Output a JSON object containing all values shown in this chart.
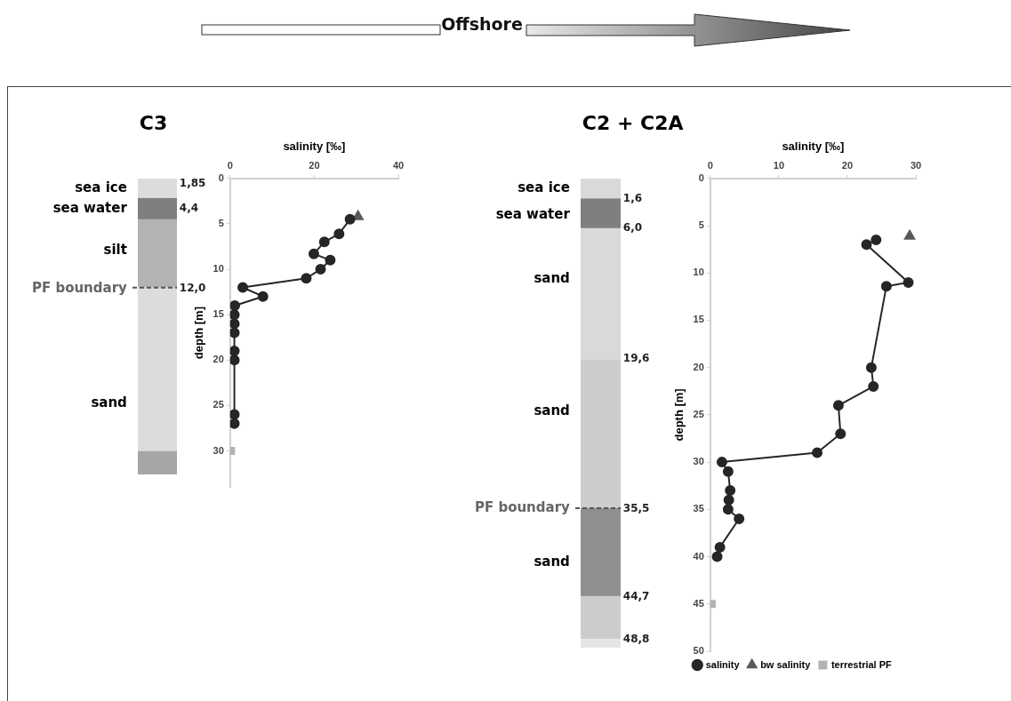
{
  "chart_data": [
    {
      "type": "line",
      "title": "C3",
      "xlabel": "salinity [‰]",
      "ylabel": "depth [m]",
      "xlim": [
        0,
        40
      ],
      "xticks": [
        0,
        20,
        40
      ],
      "ylim": [
        34,
        0
      ],
      "yticks": [
        0,
        5,
        10,
        15,
        20,
        25,
        30
      ],
      "series": [
        {
          "type": "line",
          "color": "#262626",
          "marker": "circle",
          "x": [
            28.5,
            25.9,
            22.4,
            19.9,
            23.8,
            21.5,
            18.1,
            3.0,
            7.8,
            1.1,
            1,
            1,
            1,
            1,
            1,
            1,
            1
          ],
          "values": [
            4.5,
            6.1,
            7.0,
            8.3,
            9.0,
            10.0,
            11.0,
            12.0,
            13.0,
            14.0,
            15,
            16,
            17,
            19,
            20,
            26,
            27
          ]
        },
        {
          "type": "scatter",
          "color": "#595959",
          "marker": "triangle",
          "x": [
            30.4
          ],
          "values": [
            4.2
          ]
        },
        {
          "type": "scatter",
          "color": "#b3b3b3",
          "marker": "square",
          "x": [
            0.2
          ],
          "values": [
            30
          ]
        }
      ],
      "annotations": [
        "Offshore",
        "sea ice",
        "sea water",
        "silt",
        "PF boundary",
        "sand",
        "1,85",
        "4,4",
        "12,0"
      ]
    },
    {
      "type": "line",
      "title": "C2 + C2A",
      "xlabel": "salinity [‰]",
      "ylabel": "depth [m]",
      "xlim": [
        0,
        30
      ],
      "xticks": [
        0,
        10,
        20,
        30
      ],
      "ylim": [
        50,
        0
      ],
      "yticks": [
        0,
        5,
        10,
        15,
        20,
        25,
        30,
        35,
        40,
        45,
        50
      ],
      "legend": "bottom",
      "series": [
        {
          "type": "line",
          "name": "salinity",
          "color": "#262626",
          "marker": "circle",
          "x": [
            24.2,
            22.8,
            28.9,
            25.7,
            23.5,
            23.8,
            18.7,
            19.0,
            15.6,
            1.7,
            2.6,
            2.9,
            2.7,
            2.6,
            4.2,
            1.4,
            1.0
          ],
          "values": [
            6.5,
            7.0,
            11.0,
            11.4,
            20,
            22,
            24,
            27,
            29,
            30,
            31,
            33,
            34,
            35,
            36,
            39,
            40
          ]
        },
        {
          "type": "scatter",
          "name": "bw salinity",
          "color": "#595959",
          "marker": "triangle",
          "x": [
            29.1
          ],
          "values": [
            6.1
          ]
        },
        {
          "type": "scatter",
          "name": "terrestrial PF",
          "color": "#b3b3b3",
          "marker": "square",
          "x": [
            0.2
          ],
          "values": [
            45
          ]
        }
      ],
      "annotations": [
        "sea ice",
        "sea water",
        "sand",
        "sand",
        "PF boundary",
        "sand",
        "1,6",
        "6,0",
        "19,6",
        "35,5",
        "44,7",
        "48,8"
      ]
    }
  ]
}
